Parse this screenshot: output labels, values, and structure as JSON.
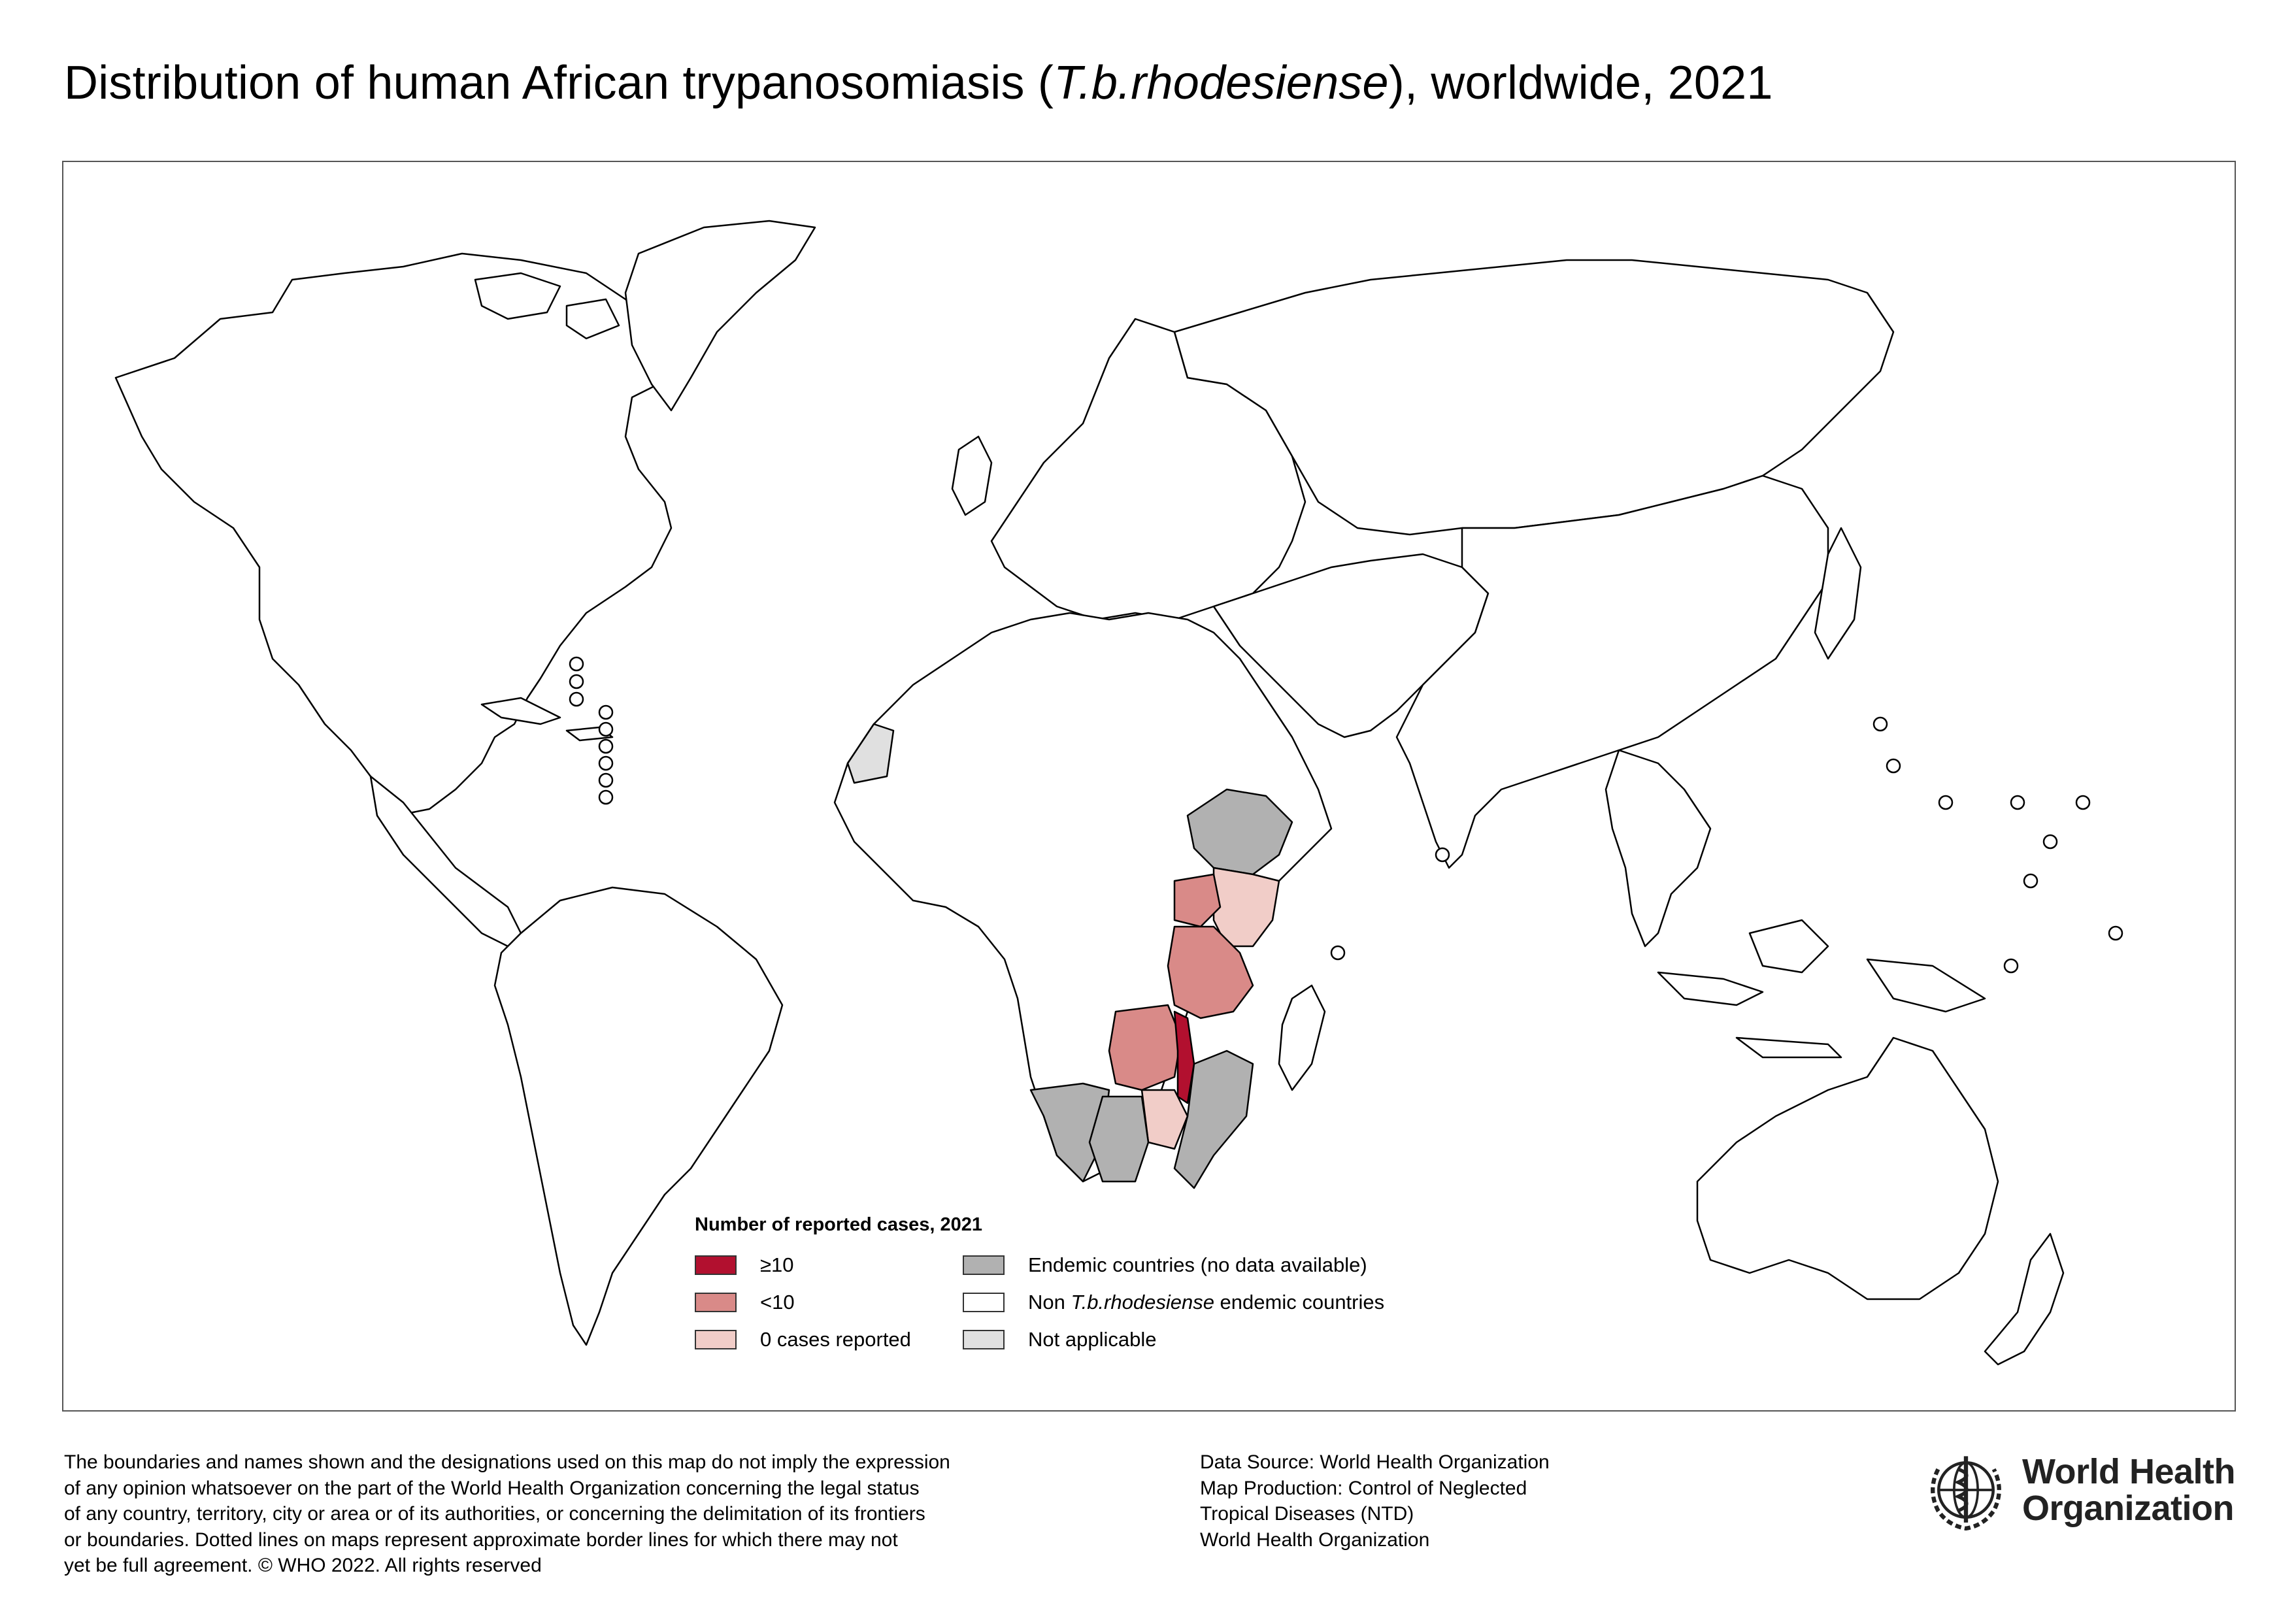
{
  "title": {
    "prefix": "Distribution of human African trypanosomiasis (",
    "italic": "T.b.rhodesiense",
    "suffix": "), worldwide, 2021"
  },
  "legend": {
    "title": "Number of reported cases, 2021",
    "items": [
      {
        "key": "ge10",
        "label": "≥10",
        "color": "#b2102f"
      },
      {
        "key": "lt10",
        "label": "<10",
        "color": "#d98a88"
      },
      {
        "key": "zero",
        "label": "0 cases reported",
        "color": "#f1cdc8"
      },
      {
        "key": "endemic_nodata",
        "label": "Endemic countries (no data available)",
        "color": "#b1b1b1"
      },
      {
        "key": "non_endemic",
        "label_prefix": "Non ",
        "label_italic": "T.b.rhodesiense",
        "label_suffix": " endemic countries",
        "color": "#ffffff"
      },
      {
        "key": "not_applicable",
        "label": "Not applicable",
        "color": "#e0e0e0"
      }
    ]
  },
  "map": {
    "country_categories": {
      "ge10": [
        "Malawi"
      ],
      "lt10": [
        "Uganda",
        "United Republic of Tanzania",
        "Zambia"
      ],
      "zero": [
        "Kenya",
        "Zimbabwe"
      ],
      "endemic_nodata": [
        "Ethiopia",
        "Mozambique",
        "Botswana",
        "Namibia"
      ],
      "not_applicable": [
        "Western Sahara"
      ]
    },
    "border_color": "#000000",
    "land_color": "#ffffff"
  },
  "disclaimer": [
    "The boundaries and names shown and the designations used on this map do not imply the expression",
    "of any opinion whatsoever on the part of the World Health Organization concerning the legal status",
    "of any country, territory, city or area or of its authorities, or concerning the delimitation of its frontiers",
    "or boundaries. Dotted lines on maps represent approximate border lines for which there may not",
    "yet be full agreement. © WHO 2022. All rights reserved"
  ],
  "source": [
    "Data Source: World Health Organization",
    "Map Production: Control of Neglected",
    "Tropical Diseases (NTD)",
    "World Health Organization"
  ],
  "logo": {
    "line1": "World Health",
    "line2": "Organization",
    "icon": "who-emblem-icon"
  }
}
